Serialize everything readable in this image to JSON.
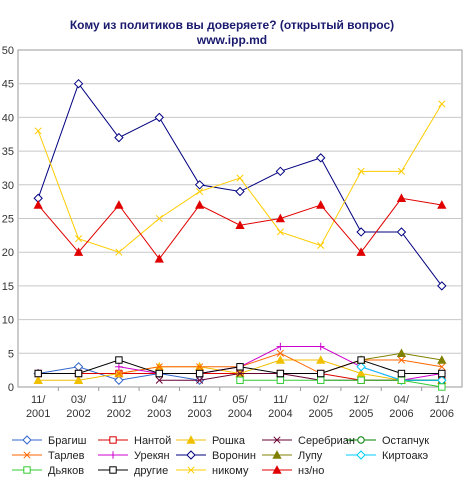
{
  "chart_data": {
    "type": "line",
    "title": "Кому из политиков вы доверяете? (открытый вопрос)",
    "subtitle": "www.ipp.md",
    "x": [
      "11/ 2001",
      "03/ 2002",
      "11/ 2002",
      "04/ 2003",
      "11/ 2003",
      "05/ 2004",
      "11/ 2004",
      "02/ 2005",
      "12/ 2005",
      "04/ 2006",
      "11/ 2006"
    ],
    "y_ticks": [
      "0",
      "5",
      "10",
      "15",
      "20",
      "25",
      "30",
      "35",
      "40",
      "45",
      "50"
    ],
    "ylim": [
      0,
      50
    ],
    "grid": true,
    "legend_position": "bottom",
    "series": [
      {
        "name": "Брагиш",
        "color": "#3366cc",
        "marker": "diamond",
        "values": [
          2,
          3,
          1,
          2,
          1,
          null,
          null,
          null,
          null,
          null,
          null
        ]
      },
      {
        "name": "Нантой",
        "color": "#dd0000",
        "marker": "square",
        "values": [
          2,
          2,
          2,
          2,
          2,
          2,
          2,
          2,
          1,
          1,
          1
        ]
      },
      {
        "name": "Рошка",
        "color": "#f0c000",
        "marker": "triangle",
        "values": [
          1,
          1,
          2,
          3,
          3,
          2,
          4,
          4,
          2,
          1,
          1
        ]
      },
      {
        "name": "Серебриан",
        "color": "#660033",
        "marker": "x",
        "values": [
          null,
          null,
          null,
          1,
          1,
          2,
          2,
          1,
          1,
          1,
          1
        ]
      },
      {
        "name": "Остапчук",
        "color": "#008000",
        "marker": "circle",
        "values": [
          null,
          null,
          null,
          null,
          null,
          null,
          null,
          null,
          null,
          1,
          1
        ]
      },
      {
        "name": "Тарлев",
        "color": "#ff6600",
        "marker": "x",
        "values": [
          null,
          null,
          2,
          3,
          3,
          3,
          5,
          2,
          4,
          4,
          3
        ]
      },
      {
        "name": "Урекян",
        "color": "#cc00cc",
        "marker": "plus",
        "values": [
          null,
          null,
          3,
          2,
          2,
          3,
          6,
          6,
          3,
          1,
          2
        ]
      },
      {
        "name": "Воронин",
        "color": "#000080",
        "marker": "diamond",
        "values": [
          28,
          45,
          37,
          40,
          30,
          29,
          32,
          34,
          23,
          23,
          15
        ]
      },
      {
        "name": "Лупу",
        "color": "#808000",
        "marker": "triangle",
        "values": [
          null,
          null,
          null,
          null,
          null,
          null,
          null,
          null,
          4,
          5,
          4
        ]
      },
      {
        "name": "Киртоакэ",
        "color": "#00ccff",
        "marker": "diamond",
        "values": [
          null,
          null,
          null,
          null,
          null,
          null,
          null,
          null,
          3,
          1,
          1
        ]
      },
      {
        "name": "Дьяков",
        "color": "#33cc33",
        "marker": "square",
        "values": [
          null,
          null,
          null,
          null,
          null,
          1,
          1,
          1,
          1,
          1,
          0
        ]
      },
      {
        "name": "другие",
        "color": "#000000",
        "marker": "square",
        "values": [
          2,
          2,
          4,
          2,
          2,
          3,
          2,
          2,
          4,
          2,
          2
        ]
      },
      {
        "name": "никому",
        "color": "#ffcc00",
        "marker": "x",
        "values": [
          38,
          22,
          20,
          25,
          29,
          31,
          23,
          21,
          32,
          32,
          42
        ]
      },
      {
        "name": "нз/но",
        "color": "#e00000",
        "marker": "triangle",
        "values": [
          27,
          20,
          27,
          19,
          27,
          24,
          25,
          27,
          20,
          28,
          27
        ]
      }
    ]
  }
}
